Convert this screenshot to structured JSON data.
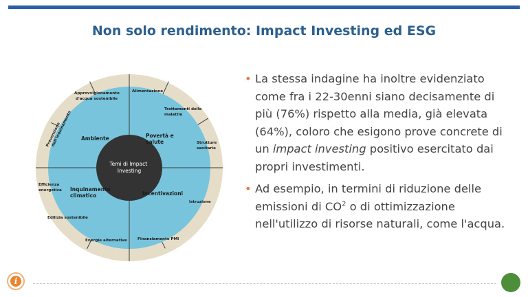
{
  "title": "Non solo rendimento: Impact Investing ed ESG",
  "colors": {
    "bar": "#2a5ea6",
    "title": "#2b5f8e",
    "bullet": "#e07a4a",
    "outer_ring": "#e6ddc9",
    "inner_ring": "#78c4dc",
    "center": "#333333"
  },
  "diagram": {
    "center": [
      "Temi di Impact",
      "Investing"
    ],
    "themes": {
      "ambiente": "Ambiente",
      "poverta": [
        "Povertà e",
        "salute"
      ],
      "inquinamento": [
        "Inquinamento",
        "climatico"
      ],
      "incentivazioni": "Incentivazioni"
    },
    "outer": {
      "acqua": [
        "Approvvigionamento",
        "d'acqua sostenibile"
      ],
      "alimentazione": "Alimentazione",
      "malattie": [
        "Trattamenti delle",
        "malattie"
      ],
      "strutture": [
        "Strutture",
        "sanitarie"
      ],
      "istruzione": "Istruzione",
      "pmi": "Finanziamento PMI",
      "energie": "Energie alternative",
      "edilizia": "Edilizia sostenibile",
      "efficienza": [
        "Efficienza",
        "energetica"
      ],
      "prevenzione": [
        "Prevenzione",
        "dell'inquinamento"
      ]
    }
  },
  "bullets": {
    "b1_part1": "La stessa indagine ha inoltre evidenziato come fra i 22-30enni siano decisamente di più (76%) rispetto alla media, già elevata (64%), coloro che esigono prove concrete di un ",
    "b1_italic": "impact investing",
    "b1_part2": " positivo esercitato dai propri investimenti.",
    "b2_part1": "Ad esempio, in termini di riduzione delle emissioni di CO",
    "b2_sup": "2",
    "b2_part2": " o di ottimizzazione nell'utilizzo di risorse naturali, come l'acqua.",
    "marker": "•"
  },
  "footer": {
    "logo_letter": "i"
  }
}
